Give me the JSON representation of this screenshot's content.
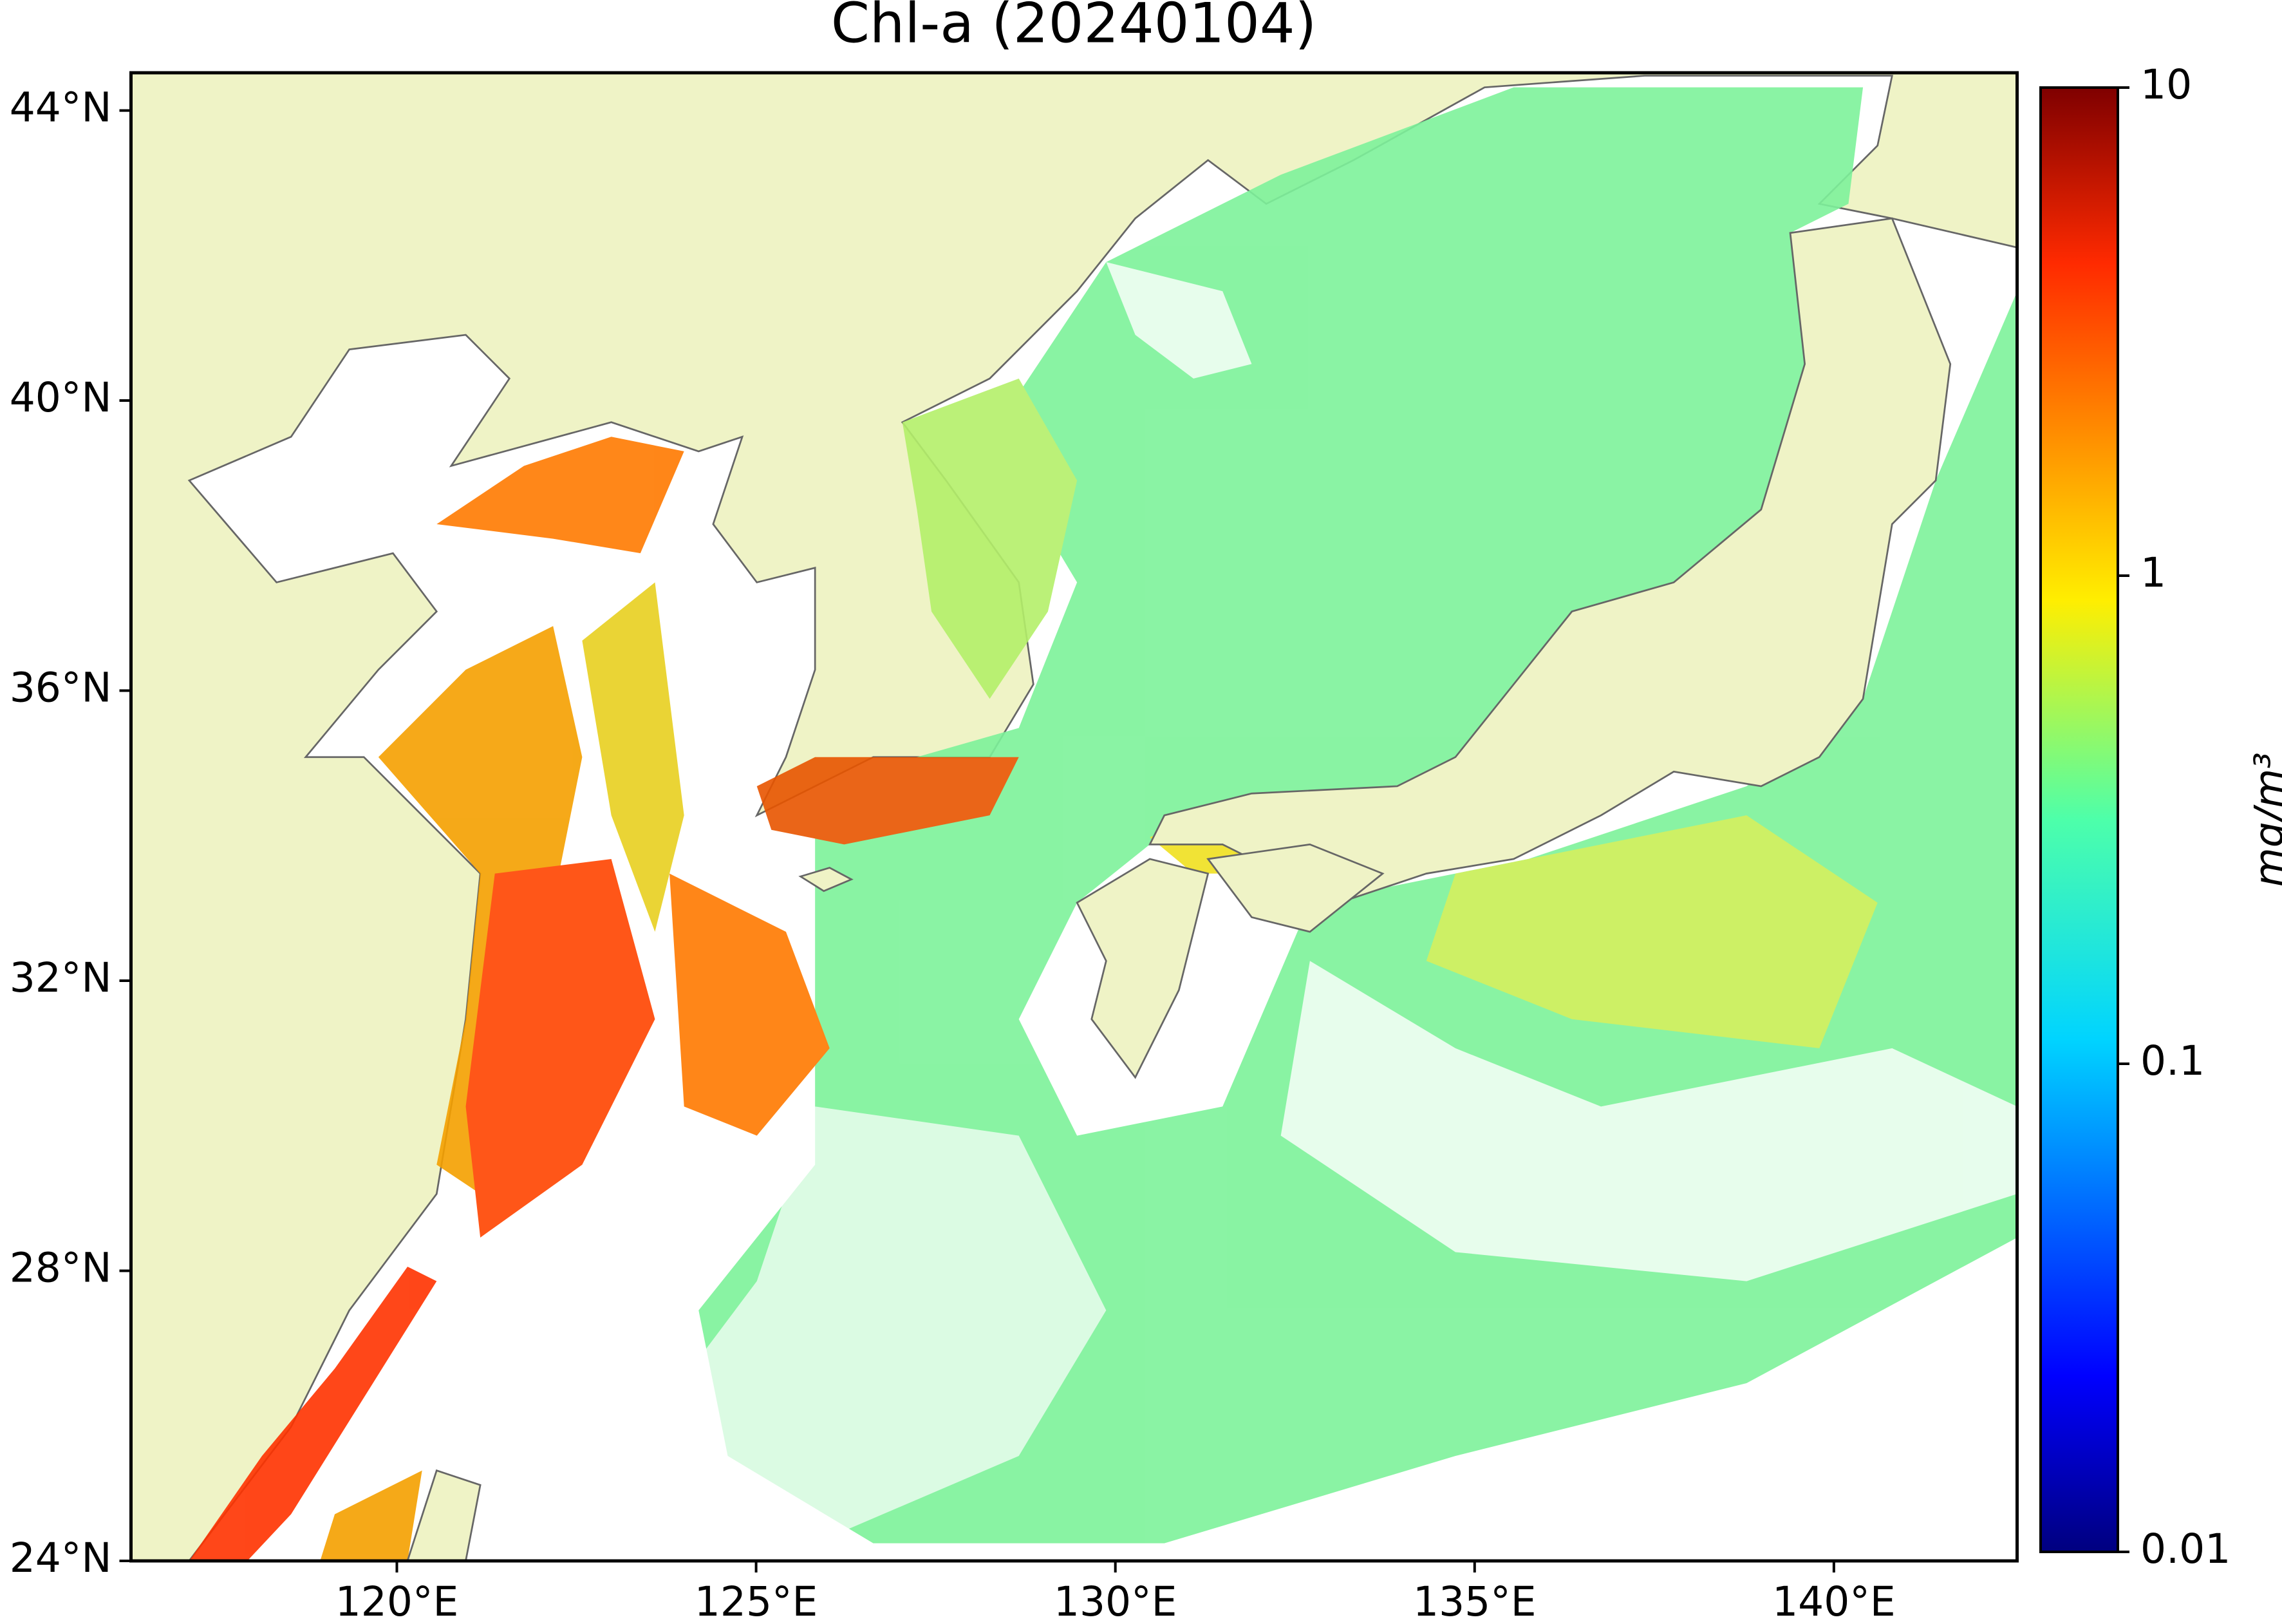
{
  "title": "Chl-a (20240104)",
  "map": {
    "xlim": [
      116.3,
      142.55
    ],
    "ylim": [
      24,
      44.52
    ],
    "xticks": [
      {
        "value": 120,
        "label": "120°E"
      },
      {
        "value": 125,
        "label": "125°E"
      },
      {
        "value": 130,
        "label": "130°E"
      },
      {
        "value": 135,
        "label": "135°E"
      },
      {
        "value": 140,
        "label": "140°E"
      }
    ],
    "yticks": [
      {
        "value": 24,
        "label": "24°N"
      },
      {
        "value": 28,
        "label": "28°N"
      },
      {
        "value": 32,
        "label": "32°N"
      },
      {
        "value": 36,
        "label": "36°N"
      },
      {
        "value": 40,
        "label": "40°N"
      },
      {
        "value": 44,
        "label": "44°N"
      }
    ]
  },
  "colorbar": {
    "label": "mg/m³",
    "log": true,
    "lim": [
      0.01,
      10
    ],
    "ticks": [
      0.01,
      0.1,
      1,
      10
    ]
  }
}
